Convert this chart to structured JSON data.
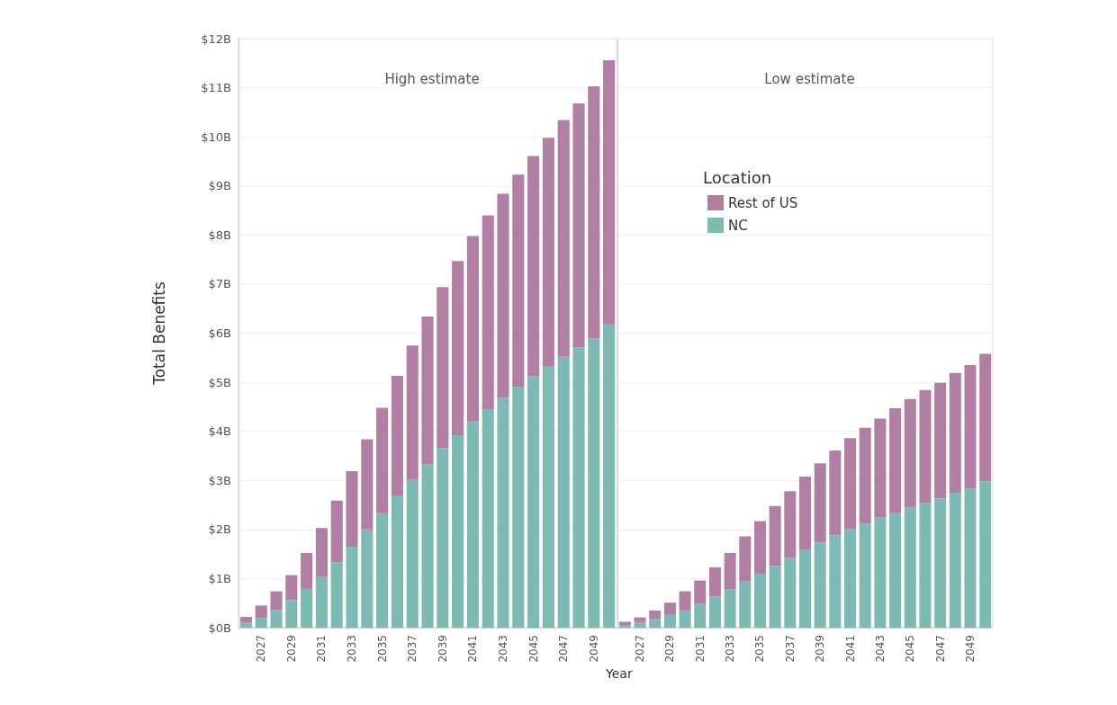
{
  "chart_data": [
    {
      "type": "bar",
      "title": "High estimate",
      "ylabel": "Total Benefits",
      "xlabel": "Year",
      "stacked": true,
      "grid": "y",
      "legend": false,
      "categories": [
        null,
        "2027",
        null,
        "2029",
        null,
        "2031",
        null,
        "2033",
        null,
        "2035",
        null,
        "2037",
        null,
        "2039",
        null,
        "2041",
        null,
        "2043",
        null,
        "2045",
        null,
        "2047",
        null,
        "2049",
        null
      ],
      "ylim": [
        0,
        12
      ],
      "yticks": [
        {
          "value": 0,
          "label": "$0B"
        },
        {
          "value": 1,
          "label": "$1B"
        },
        {
          "value": 2,
          "label": "$2B"
        },
        {
          "value": 3,
          "label": "$3B"
        },
        {
          "value": 4,
          "label": "$4B"
        },
        {
          "value": 5,
          "label": "$5B"
        },
        {
          "value": 6,
          "label": "$6B"
        },
        {
          "value": 7,
          "label": "$7B"
        },
        {
          "value": 8,
          "label": "$8B"
        },
        {
          "value": 9,
          "label": "$9B"
        },
        {
          "value": 10,
          "label": "$10B"
        },
        {
          "value": 11,
          "label": "$11B"
        },
        {
          "value": 12,
          "label": "$12B"
        }
      ],
      "series": [
        {
          "color": "#7ebab4",
          "values": [
            0.1,
            0.2,
            0.36,
            0.56,
            0.79,
            1.03,
            1.33,
            1.65,
            2.0,
            2.33,
            2.68,
            3.01,
            3.33,
            3.66,
            3.92,
            4.2,
            4.45,
            4.68,
            4.91,
            5.12,
            5.33,
            5.52,
            5.71,
            5.89,
            6.18
          ]
        },
        {
          "color": "#b07fa3",
          "values": [
            0.12,
            0.25,
            0.38,
            0.51,
            0.73,
            1.0,
            1.26,
            1.54,
            1.84,
            2.15,
            2.45,
            2.74,
            3.01,
            3.28,
            3.55,
            3.78,
            3.95,
            4.16,
            4.32,
            4.49,
            4.65,
            4.82,
            4.97,
            5.14,
            5.38
          ]
        }
      ]
    },
    {
      "type": "bar",
      "title": "Low estimate",
      "stacked": true,
      "grid": "y",
      "legend": "top left",
      "legend_title": "Location",
      "tick_labels": "x",
      "categories": [
        null,
        "2027",
        null,
        "2029",
        null,
        "2031",
        null,
        "2033",
        null,
        "2035",
        null,
        "2037",
        null,
        "2039",
        null,
        "2041",
        null,
        "2043",
        null,
        "2045",
        null,
        "2047",
        null,
        "2049",
        null
      ],
      "ylim": [
        0,
        12
      ],
      "yticks": [
        0,
        1,
        2,
        3,
        4,
        5,
        6,
        7,
        8,
        9,
        10,
        11,
        12
      ],
      "series": [
        {
          "name": "NC",
          "color": "#7ebab4",
          "values": [
            0.04,
            0.1,
            0.18,
            0.26,
            0.35,
            0.49,
            0.63,
            0.78,
            0.94,
            1.1,
            1.26,
            1.42,
            1.58,
            1.73,
            1.88,
            2.0,
            2.12,
            2.24,
            2.33,
            2.45,
            2.54,
            2.63,
            2.75,
            2.84,
            2.98
          ]
        },
        {
          "name": "Rest of US",
          "color": "#b07fa3",
          "values": [
            0.08,
            0.11,
            0.17,
            0.25,
            0.39,
            0.47,
            0.6,
            0.74,
            0.92,
            1.07,
            1.22,
            1.36,
            1.5,
            1.62,
            1.73,
            1.86,
            1.95,
            2.02,
            2.14,
            2.21,
            2.3,
            2.36,
            2.44,
            2.51,
            2.6
          ]
        }
      ]
    }
  ]
}
